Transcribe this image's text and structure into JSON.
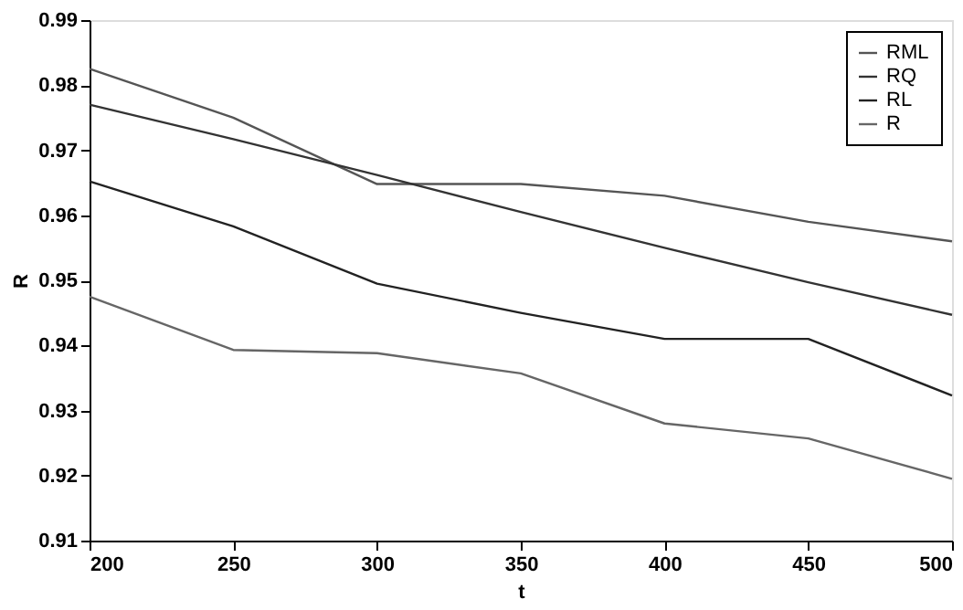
{
  "chart_data": {
    "type": "line",
    "xlabel": "t",
    "ylabel": "R",
    "x": [
      200,
      250,
      300,
      350,
      400,
      450,
      500
    ],
    "series": [
      {
        "name": "RML",
        "color": "#555555",
        "values": [
          0.9825,
          0.975,
          0.9648,
          0.9648,
          0.963,
          0.959,
          0.956
        ]
      },
      {
        "name": "RQ",
        "color": "#333333",
        "values": [
          0.977,
          0.9717,
          0.9662,
          0.9605,
          0.955,
          0.9497,
          0.9447
        ]
      },
      {
        "name": "RL",
        "color": "#222222",
        "values": [
          0.9652,
          0.9583,
          0.9495,
          0.945,
          0.941,
          0.941,
          0.9323
        ]
      },
      {
        "name": "R",
        "color": "#666666",
        "values": [
          0.9475,
          0.9393,
          0.9388,
          0.9357,
          0.928,
          0.9257,
          0.9195
        ]
      }
    ],
    "xlim": [
      200,
      500
    ],
    "xticks": [
      200,
      250,
      300,
      350,
      400,
      450,
      500
    ],
    "ylim": [
      0.91,
      0.99
    ],
    "yticks": [
      0.91,
      0.92,
      0.93,
      0.94,
      0.95,
      0.96,
      0.97,
      0.98,
      0.99
    ],
    "grid": false,
    "legend": "top right",
    "marker": "none",
    "line_style": "solid"
  }
}
